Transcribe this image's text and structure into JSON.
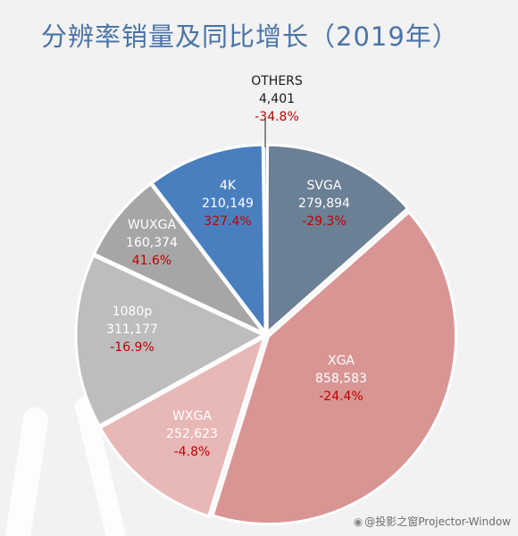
{
  "title": "分辨率销量及同比增长（2019年）",
  "watermark": "@投影之窗Projector-Window",
  "chart_data": {
    "type": "pie",
    "title": "分辨率销量及同比增长（2019年）",
    "start": "top, clockwise",
    "slices": [
      {
        "label": "SVGA",
        "value_label": "279,894",
        "value": 279894,
        "growth": "-29.3%",
        "color": "#6b7f95"
      },
      {
        "label": "XGA",
        "value_label": "858,583",
        "value": 858583,
        "growth": "-24.4%",
        "color": "#d99594"
      },
      {
        "label": "WXGA",
        "value_label": "252,623",
        "value": 252623,
        "growth": "-4.8%",
        "color": "#e8b8b7"
      },
      {
        "label": "1080p",
        "value_label": "311,177",
        "value": 311177,
        "growth": "-16.9%",
        "color": "#bdbdbd"
      },
      {
        "label": "WUXGA",
        "value_label": "160,374",
        "value": 160374,
        "growth": "41.6%",
        "color": "#a6a6a6"
      },
      {
        "label": "4K",
        "value_label": "210,149",
        "value": 210149,
        "growth": "327.4%",
        "color": "#4a7fbf"
      },
      {
        "label": "OTHERS",
        "value_label": "4,401",
        "value": 4401,
        "growth": "-34.8%",
        "color": "#aebfd4"
      }
    ],
    "colors": {
      "label_light": "#ffffff",
      "label_dark": "#1a1a1a",
      "growth_red": "#c00000",
      "title_blue": "#4b74a6"
    }
  }
}
